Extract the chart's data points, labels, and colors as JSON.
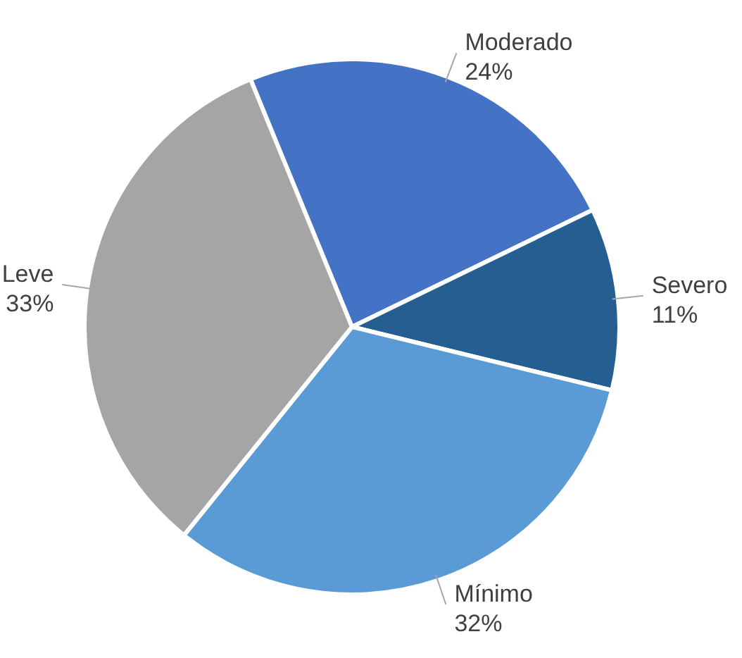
{
  "chart_data": {
    "type": "pie",
    "categories": [
      "Moderado",
      "Severo",
      "Mínimo",
      "Leve"
    ],
    "values": [
      24,
      11,
      32,
      33
    ],
    "colors": [
      "#4472c4",
      "#255e91",
      "#5b9bd5",
      "#a5a5a5"
    ],
    "value_labels": [
      "24%",
      "11%",
      "32%",
      "33%"
    ]
  }
}
